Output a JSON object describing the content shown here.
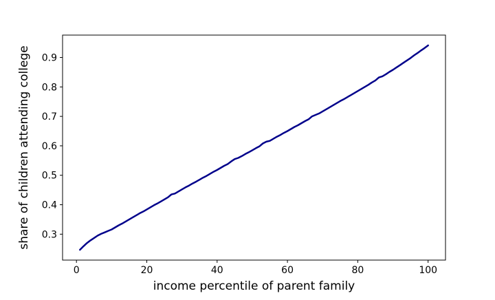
{
  "chart_data": {
    "type": "line",
    "title": "",
    "xlabel": "income percentile of parent family",
    "ylabel": "share of children attending college",
    "xlim": [
      -3.95,
      104.95
    ],
    "ylim": [
      0.212,
      0.976
    ],
    "xticks": [
      0,
      20,
      40,
      60,
      80,
      100
    ],
    "xtick_labels": [
      "0",
      "20",
      "40",
      "60",
      "80",
      "100"
    ],
    "yticks": [
      0.3,
      0.4,
      0.5,
      0.6,
      0.7,
      0.8,
      0.9
    ],
    "ytick_labels": [
      "0.3",
      "0.4",
      "0.5",
      "0.6",
      "0.7",
      "0.8",
      "0.9"
    ],
    "grid": false,
    "legend": false,
    "line_color": "#00008b",
    "line_width": 2.5,
    "x": [
      1,
      2,
      3,
      4,
      5,
      6,
      7,
      8,
      9,
      10,
      11,
      12,
      13,
      14,
      15,
      16,
      17,
      18,
      19,
      20,
      21,
      22,
      23,
      24,
      25,
      26,
      27,
      28,
      29,
      30,
      31,
      32,
      33,
      34,
      35,
      36,
      37,
      38,
      39,
      40,
      41,
      42,
      43,
      44,
      45,
      46,
      47,
      48,
      49,
      50,
      51,
      52,
      53,
      54,
      55,
      56,
      57,
      58,
      59,
      60,
      61,
      62,
      63,
      64,
      65,
      66,
      67,
      68,
      69,
      70,
      71,
      72,
      73,
      74,
      75,
      76,
      77,
      78,
      79,
      80,
      81,
      82,
      83,
      84,
      85,
      86,
      87,
      88,
      89,
      90,
      91,
      92,
      93,
      94,
      95,
      96,
      97,
      98,
      99,
      100
    ],
    "y": [
      0.247,
      0.259,
      0.27,
      0.279,
      0.287,
      0.295,
      0.301,
      0.306,
      0.311,
      0.316,
      0.323,
      0.33,
      0.336,
      0.343,
      0.35,
      0.357,
      0.364,
      0.371,
      0.377,
      0.384,
      0.391,
      0.398,
      0.404,
      0.411,
      0.418,
      0.425,
      0.435,
      0.438,
      0.445,
      0.452,
      0.459,
      0.465,
      0.472,
      0.478,
      0.485,
      0.492,
      0.498,
      0.505,
      0.512,
      0.518,
      0.525,
      0.532,
      0.538,
      0.547,
      0.555,
      0.559,
      0.565,
      0.572,
      0.578,
      0.585,
      0.592,
      0.598,
      0.608,
      0.614,
      0.617,
      0.624,
      0.631,
      0.637,
      0.644,
      0.65,
      0.657,
      0.664,
      0.67,
      0.677,
      0.684,
      0.69,
      0.7,
      0.705,
      0.71,
      0.717,
      0.724,
      0.731,
      0.738,
      0.745,
      0.752,
      0.758,
      0.765,
      0.772,
      0.779,
      0.786,
      0.793,
      0.8,
      0.807,
      0.815,
      0.822,
      0.832,
      0.836,
      0.843,
      0.851,
      0.858,
      0.866,
      0.874,
      0.882,
      0.89,
      0.898,
      0.907,
      0.915,
      0.924,
      0.932,
      0.941
    ]
  },
  "colors": {
    "background": "#ffffff",
    "axis": "#000000",
    "tick_label": "#000000"
  }
}
